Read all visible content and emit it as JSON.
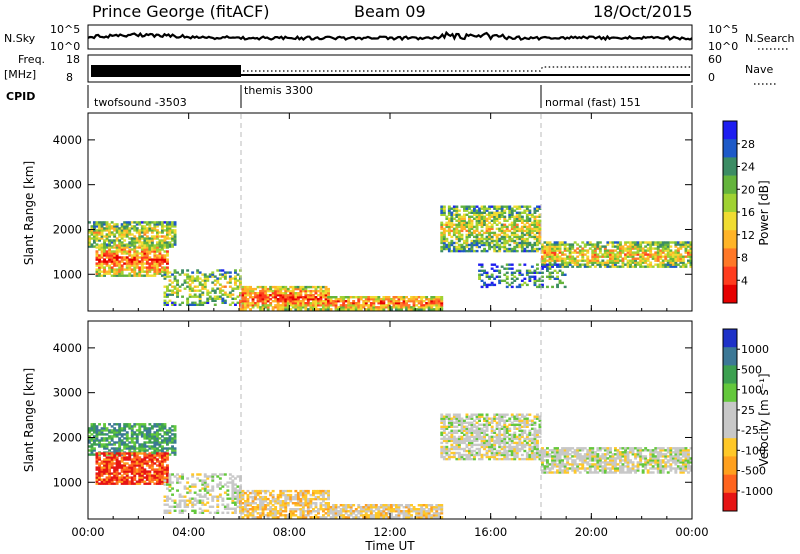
{
  "title": {
    "station": "Prince George (fitACF)",
    "beam": "Beam 09",
    "date": "18/Oct/2015"
  },
  "header": {
    "nsky_label": "N.Sky",
    "nsearch_label": "N.Search",
    "freq_label_line1": "Freq.",
    "freq_label_line2": "[MHz]",
    "nave_label": "Nave",
    "cpid_label": "CPID",
    "nsky_ticks": [
      "10^5",
      "10^0"
    ],
    "nsearch_ticks": [
      "10^5",
      "10^0"
    ],
    "freq_ticks": [
      "18",
      "8"
    ],
    "nave_ticks": [
      "60",
      "0"
    ]
  },
  "cpid_segments": [
    {
      "label": "twofsound -3503",
      "start_h": 0,
      "end_h": 6
    },
    {
      "label": "themis 3300",
      "start_h": 6,
      "end_h": 18
    },
    {
      "label": "normal (fast) 151",
      "start_h": 18,
      "end_h": 24
    }
  ],
  "chart_data": [
    {
      "type": "heatmap",
      "title": "",
      "xlabel": "Time UT",
      "ylabel": "Slant Range [km]",
      "x_ticks": [
        "00:00",
        "04:00",
        "08:00",
        "12:00",
        "16:00",
        "20:00",
        "00:00"
      ],
      "y_ticks": [
        "1000",
        "2000",
        "3000",
        "4000"
      ],
      "xlim_hours": [
        0,
        24
      ],
      "ylim_km": [
        180,
        4600
      ],
      "colorbar_label": "Power [dB]",
      "colorbar_ticks": [
        "4",
        "8",
        "12",
        "16",
        "20",
        "24",
        "28"
      ],
      "colorbar_colors": [
        "#1e1ef0",
        "#1e5ac8",
        "#3c8c64",
        "#64b43c",
        "#a0d232",
        "#f0dc32",
        "#ffb428",
        "#ff7828",
        "#ff3c1e",
        "#e60000"
      ],
      "bands": [
        {
          "t0": 0.0,
          "t1": 3.5,
          "r0": 1600,
          "r1": 2150,
          "intensity": 0.55,
          "density": 0.75
        },
        {
          "t0": 0.3,
          "t1": 3.2,
          "r0": 950,
          "r1": 1650,
          "intensity": 0.85,
          "density": 0.8
        },
        {
          "t0": 3.0,
          "t1": 6.0,
          "r0": 300,
          "r1": 1100,
          "intensity": 0.5,
          "density": 0.45
        },
        {
          "t0": 6.0,
          "t1": 9.5,
          "r0": 200,
          "r1": 700,
          "intensity": 0.85,
          "density": 0.85
        },
        {
          "t0": 9.5,
          "t1": 14.0,
          "r0": 200,
          "r1": 500,
          "intensity": 0.8,
          "density": 0.85
        },
        {
          "t0": 14.0,
          "t1": 18.0,
          "r0": 1500,
          "r1": 2500,
          "intensity": 0.55,
          "density": 0.7
        },
        {
          "t0": 18.0,
          "t1": 24.0,
          "r0": 1150,
          "r1": 1700,
          "intensity": 0.65,
          "density": 0.75
        },
        {
          "t0": 15.5,
          "t1": 19.0,
          "r0": 700,
          "r1": 1200,
          "intensity": 0.3,
          "density": 0.35
        }
      ]
    },
    {
      "type": "heatmap",
      "title": "",
      "xlabel": "Time UT",
      "ylabel": "Slant Range [km]",
      "x_ticks": [
        "00:00",
        "04:00",
        "08:00",
        "12:00",
        "16:00",
        "20:00",
        "00:00"
      ],
      "y_ticks": [
        "1000",
        "2000",
        "3000",
        "4000"
      ],
      "xlim_hours": [
        0,
        24
      ],
      "ylim_km": [
        180,
        4600
      ],
      "colorbar_label": "Velocity [m s⁻¹]",
      "colorbar_ticks": [
        "1000",
        "500",
        "100",
        "25",
        "-25",
        "-100",
        "-500",
        "-1000"
      ],
      "colorbar_colors": [
        "#1e32c8",
        "#3c7896",
        "#3ca050",
        "#64c83c",
        "#c8c8c8",
        "#c8c8c8",
        "#ffc828",
        "#ffa01e",
        "#ff641e",
        "#e61414"
      ],
      "bands": [
        {
          "t0": 0.0,
          "t1": 3.5,
          "r0": 1600,
          "r1": 2300,
          "vel": 0.5,
          "density": 0.7
        },
        {
          "t0": 0.3,
          "t1": 3.2,
          "r0": 950,
          "r1": 1650,
          "vel": -0.8,
          "density": 0.8
        },
        {
          "t0": 3.0,
          "t1": 6.0,
          "r0": 300,
          "r1": 1200,
          "vel": 0.0,
          "density": 0.4
        },
        {
          "t0": 6.0,
          "t1": 9.5,
          "r0": 200,
          "r1": 800,
          "vel": -0.25,
          "density": 0.7
        },
        {
          "t0": 9.5,
          "t1": 14.0,
          "r0": 200,
          "r1": 500,
          "vel": -0.2,
          "density": 0.8
        },
        {
          "t0": 14.0,
          "t1": 18.0,
          "r0": 1500,
          "r1": 2500,
          "vel": 0.0,
          "density": 0.7
        },
        {
          "t0": 18.0,
          "t1": 24.0,
          "r0": 1200,
          "r1": 1750,
          "vel": 0.0,
          "density": 0.75
        }
      ]
    }
  ]
}
